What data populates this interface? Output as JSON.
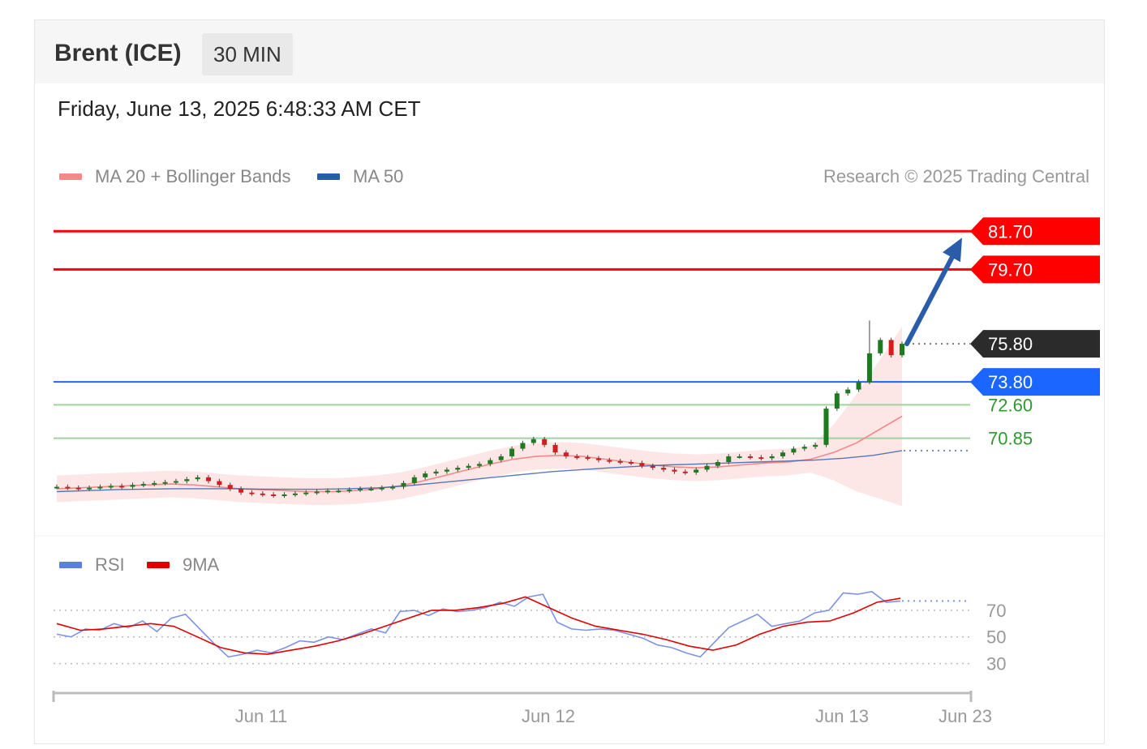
{
  "header": {
    "instrument": "Brent (ICE)",
    "timeframe": "30 MIN",
    "timestamp": "Friday, June 13, 2025 6:48:33 AM CET"
  },
  "legend": {
    "ma20": {
      "label": "MA 20 + Bollinger Bands",
      "color": "#f28a8a"
    },
    "ma50": {
      "label": "MA 50",
      "color": "#2a5caa"
    }
  },
  "copyright": "Research © 2025 Trading Central",
  "rsi_legend": {
    "rsi": {
      "label": "RSI",
      "color": "#5b7fe0"
    },
    "ma9": {
      "label": "9MA",
      "color": "#e00000"
    }
  },
  "levels": {
    "resistance2": {
      "label": "81.70",
      "value": 81.7,
      "color": "#ff0000"
    },
    "resistance1": {
      "label": "79.70",
      "value": 79.7,
      "color": "#ff0000"
    },
    "last": {
      "label": "75.80",
      "value": 75.8,
      "color": "#333333"
    },
    "pivot": {
      "label": "73.80",
      "value": 73.8,
      "color": "#1a66ff"
    },
    "support1": {
      "label": "72.60",
      "value": 72.6,
      "color": "#2e9a2e"
    },
    "support2": {
      "label": "70.85",
      "value": 70.85,
      "color": "#2e9a2e"
    }
  },
  "chart_data": [
    {
      "type": "line",
      "title": "Brent (ICE) 30 MIN",
      "x_labels": [
        "Jun 11",
        "Jun 12",
        "Jun 13",
        "Jun 23"
      ],
      "ylim": [
        66.2,
        83.2
      ],
      "series": [
        {
          "name": "Price",
          "values": [
            68.3,
            68.25,
            68.2,
            68.25,
            68.3,
            68.35,
            68.3,
            68.4,
            68.45,
            68.5,
            68.55,
            68.6,
            68.7,
            68.8,
            68.6,
            68.4,
            68.2,
            68.0,
            67.95,
            67.9,
            67.85,
            67.9,
            67.95,
            68.0,
            68.05,
            68.1,
            68.1,
            68.15,
            68.2,
            68.2,
            68.25,
            68.3,
            68.5,
            68.8,
            69.0,
            69.1,
            69.2,
            69.3,
            69.4,
            69.5,
            69.7,
            69.9,
            70.3,
            70.6,
            70.8,
            70.5,
            70.1,
            69.9,
            69.85,
            69.8,
            69.7,
            69.65,
            69.6,
            69.55,
            69.4,
            69.3,
            69.2,
            69.1,
            69.05,
            69.2,
            69.4,
            69.6,
            69.9,
            69.9,
            69.85,
            69.8,
            69.9,
            70.1,
            70.3,
            70.4,
            70.5,
            72.4,
            73.2,
            73.4,
            73.8,
            75.3,
            76.0,
            75.2,
            75.8
          ]
        },
        {
          "name": "MA 20",
          "values": [
            68.2,
            68.25,
            68.3,
            68.35,
            68.4,
            68.45,
            68.4,
            68.3,
            68.2,
            68.15,
            68.1,
            68.05,
            68.05,
            68.1,
            68.2,
            68.35,
            68.6,
            68.9,
            69.2,
            69.5,
            69.75,
            69.9,
            69.95,
            69.9,
            69.75,
            69.6,
            69.45,
            69.35,
            69.3,
            69.35,
            69.45,
            69.55,
            69.6,
            69.75,
            70.1,
            70.6,
            71.3,
            72.0
          ]
        },
        {
          "name": "MA 50",
          "values": [
            68.05,
            68.1,
            68.15,
            68.18,
            68.2,
            68.2,
            68.2,
            68.18,
            68.17,
            68.17,
            68.2,
            68.25,
            68.35,
            68.5,
            68.65,
            68.8,
            68.95,
            69.1,
            69.2,
            69.3,
            69.38,
            69.45,
            69.5,
            69.55,
            69.6,
            69.65,
            69.7,
            69.8,
            69.95,
            70.2
          ]
        }
      ]
    },
    {
      "type": "line",
      "title": "RSI",
      "ylim": [
        20,
        90
      ],
      "y_ticks": [
        30,
        50,
        70
      ],
      "series": [
        {
          "name": "RSI",
          "values": [
            52,
            50,
            56,
            55,
            60,
            57,
            62,
            54,
            64,
            67,
            56,
            45,
            35,
            37,
            40,
            38,
            42,
            47,
            46,
            50,
            48,
            52,
            56,
            53,
            69,
            70,
            66,
            71,
            69,
            70,
            72,
            76,
            73,
            80,
            82,
            61,
            56,
            55,
            56,
            55,
            52,
            49,
            44,
            42,
            38,
            35,
            46,
            57,
            62,
            67,
            58,
            60,
            62,
            68,
            70,
            83,
            82,
            84,
            76,
            77
          ]
        },
        {
          "name": "9MA",
          "values": [
            60,
            55,
            56,
            58,
            60,
            58,
            50,
            42,
            38,
            37,
            40,
            43,
            47,
            52,
            58,
            64,
            70,
            70,
            72,
            75,
            80,
            72,
            64,
            58,
            55,
            52,
            48,
            43,
            40,
            44,
            52,
            58,
            61,
            62,
            68,
            76,
            79
          ]
        }
      ]
    }
  ]
}
